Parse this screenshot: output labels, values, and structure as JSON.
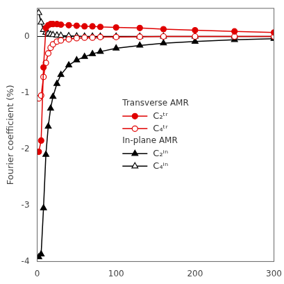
{
  "chart_data": {
    "type": "line",
    "y_label": "Fourier coefficient (%)",
    "x": [
      2,
      5,
      8,
      11,
      14,
      17,
      20,
      25,
      30,
      40,
      50,
      60,
      70,
      80,
      100,
      130,
      160,
      200,
      250,
      300
    ],
    "series": [
      {
        "name": "C₂ᵗʳ",
        "group": "Transverse AMR",
        "color": "#e00000",
        "marker": "circle",
        "values": [
          -2.05,
          -1.85,
          -0.55,
          0.15,
          0.2,
          0.22,
          0.22,
          0.22,
          0.21,
          0.2,
          0.19,
          0.18,
          0.18,
          0.17,
          0.16,
          0.15,
          0.13,
          0.11,
          0.09,
          0.07
        ]
      },
      {
        "name": "C₄ᵗʳ",
        "group": "Transverse AMR",
        "color": "#e00000",
        "marker": "open-circle",
        "values": [
          -1.1,
          -1.05,
          -0.72,
          -0.47,
          -0.3,
          -0.2,
          -0.14,
          -0.09,
          -0.07,
          -0.05,
          -0.03,
          -0.02,
          -0.02,
          -0.01,
          -0.01,
          -0.005,
          0.0,
          0.0,
          0.0,
          0.0
        ]
      },
      {
        "name": "C₂ⁱⁿ",
        "group": "In-plane AMR",
        "color": "#000000",
        "marker": "triangle",
        "values": [
          -3.92,
          -3.87,
          -3.05,
          -2.1,
          -1.6,
          -1.28,
          -1.07,
          -0.84,
          -0.68,
          -0.51,
          -0.42,
          -0.36,
          -0.31,
          -0.27,
          -0.21,
          -0.16,
          -0.12,
          -0.09,
          -0.06,
          -0.04
        ]
      },
      {
        "name": "C₄ⁱⁿ",
        "group": "In-plane AMR",
        "color": "#000000",
        "marker": "open-triangle",
        "values": [
          0.42,
          0.25,
          0.12,
          0.07,
          0.05,
          0.035,
          0.028,
          0.02,
          0.015,
          0.01,
          0.005,
          0.0,
          0.0,
          0.0,
          0.0,
          0.0,
          0.0,
          0.0,
          0.0,
          0.0
        ]
      }
    ],
    "hline": 0,
    "xlim": [
      0,
      300
    ],
    "xticks": [
      0,
      100,
      200,
      300
    ],
    "ylim": [
      -4,
      0.5
    ],
    "yticks": [
      -4,
      -3,
      -2,
      -1,
      0
    ],
    "grid": false,
    "legend": "center"
  }
}
